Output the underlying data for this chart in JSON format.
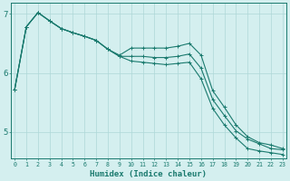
{
  "xlabel": "Humidex (Indice chaleur)",
  "bg_color": "#d4efef",
  "grid_color": "#aed8d8",
  "line_color": "#1a7a6e",
  "x_values": [
    0,
    1,
    2,
    3,
    4,
    5,
    6,
    7,
    8,
    9,
    10,
    11,
    12,
    13,
    14,
    15,
    16,
    17,
    18,
    19,
    20,
    21,
    22,
    23
  ],
  "series1": [
    5.72,
    6.78,
    7.02,
    6.88,
    6.75,
    6.68,
    6.62,
    6.55,
    6.4,
    6.3,
    6.42,
    6.42,
    6.42,
    6.42,
    6.45,
    6.5,
    6.3,
    5.7,
    5.42,
    5.12,
    4.92,
    4.82,
    4.78,
    4.72
  ],
  "series2": [
    5.72,
    6.78,
    7.02,
    6.88,
    6.75,
    6.68,
    6.62,
    6.55,
    6.4,
    6.28,
    6.28,
    6.28,
    6.26,
    6.26,
    6.28,
    6.32,
    6.08,
    5.55,
    5.28,
    5.02,
    4.88,
    4.8,
    4.72,
    4.7
  ],
  "series3": [
    5.72,
    6.78,
    7.02,
    6.88,
    6.75,
    6.68,
    6.62,
    6.55,
    6.4,
    6.28,
    6.2,
    6.18,
    6.16,
    6.14,
    6.16,
    6.18,
    5.9,
    5.4,
    5.12,
    4.9,
    4.72,
    4.68,
    4.65,
    4.62
  ],
  "ylim": [
    4.55,
    7.18
  ],
  "yticks": [
    5,
    6,
    7
  ],
  "xticks": [
    0,
    1,
    2,
    3,
    4,
    5,
    6,
    7,
    8,
    9,
    10,
    11,
    12,
    13,
    14,
    15,
    16,
    17,
    18,
    19,
    20,
    21,
    22,
    23
  ],
  "figsize": [
    3.2,
    2.0
  ],
  "dpi": 100
}
